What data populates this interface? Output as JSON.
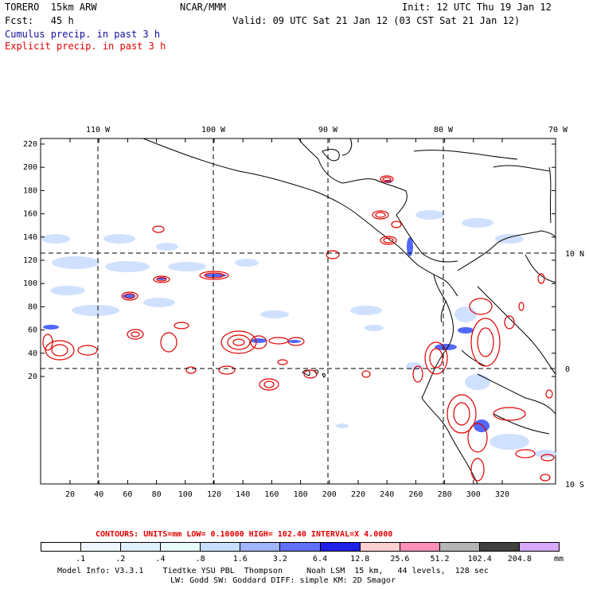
{
  "header": {
    "model": "TORERO  15km ARW",
    "org": "NCAR/MMM",
    "init": "Init: 12 UTC Thu 19 Jan 12",
    "fcst": "Fcst:   45 h",
    "valid": "Valid: 09 UTC Sat 21 Jan 12 (03 CST Sat 21 Jan 12)",
    "legend_cumulus": "Cumulus precip. in past 3 h",
    "legend_explicit": "Explicit precip. in past 3 h"
  },
  "map": {
    "lon_labels": [
      "110 W",
      "100 W",
      "90 W",
      "80 W",
      "70 W"
    ],
    "lat_labels": [
      "10 N",
      "0",
      "10 S"
    ],
    "y_ticks": [
      "220",
      "200",
      "180",
      "160",
      "140",
      "120",
      "100",
      "80",
      "60",
      "40",
      "20"
    ],
    "x_ticks": [
      "20",
      "40",
      "60",
      "80",
      "100",
      "120",
      "140",
      "160",
      "180",
      "200",
      "220",
      "240",
      "260",
      "280",
      "300",
      "320"
    ]
  },
  "contour_info": "CONTOURS:  UNITS=mm  LOW= 0.10000      HIGH=  102.40      INTERVAL=X  4.0000",
  "colorbar": {
    "labels": [
      ".1",
      ".2",
      ".4",
      ".8",
      "1.6",
      "3.2",
      "6.4",
      "12.8",
      "25.6",
      "51.2",
      "102.4",
      "204.8"
    ],
    "unit": "mm",
    "colors": [
      "#ffffff",
      "#f0f6ff",
      "#e0f0ff",
      "#e8fafa",
      "#c8e0ff",
      "#a0b4ff",
      "#6070ff",
      "#2020e8",
      "#ffd0d0",
      "#ff90b8",
      "#b4b4b4",
      "#404040",
      "#d8a8ff"
    ]
  },
  "footer": {
    "line1": "Model Info: V3.3.1    Tiedtke YSU PBL  Thompson     Noah LSM  15 km,   44 levels,  128 sec",
    "line2": "LW: Godd SW: Goddard DIFF: simple KM: 2D Smagor"
  }
}
